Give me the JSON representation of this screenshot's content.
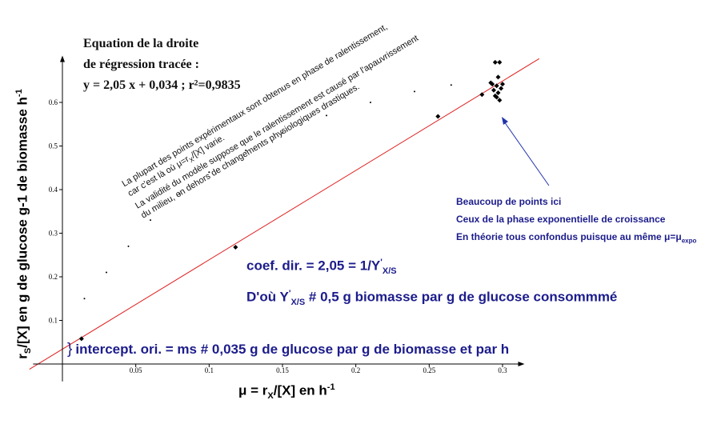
{
  "chart_data": {
    "type": "scatter",
    "xlim": [
      -0.02,
      0.315
    ],
    "ylim": [
      -0.2,
      0.7
    ],
    "x_ticks": [
      0.05,
      0.1,
      0.15,
      0.2,
      0.25,
      0.3
    ],
    "x_tick_labels": [
      "0.05",
      "0.1",
      "0.15",
      "0.2",
      "0.25",
      "0.3"
    ],
    "y_ticks": [
      0.1,
      0.2,
      0.3,
      0.4,
      0.5,
      0.6
    ],
    "y_tick_labels": [
      "0.1",
      "0.2",
      "0.3",
      "0.4",
      "0.5",
      "0.6"
    ],
    "grid": false,
    "regression": {
      "slope": 2.05,
      "intercept": 0.034
    },
    "points": [
      {
        "x": 0.013,
        "y": 0.058
      },
      {
        "x": 0.118,
        "y": 0.268
      },
      {
        "x": 0.256,
        "y": 0.568
      },
      {
        "x": 0.286,
        "y": 0.618
      },
      {
        "x": 0.295,
        "y": 0.692
      },
      {
        "x": 0.298,
        "y": 0.692
      },
      {
        "x": 0.297,
        "y": 0.658
      },
      {
        "x": 0.293,
        "y": 0.642
      },
      {
        "x": 0.296,
        "y": 0.638
      },
      {
        "x": 0.299,
        "y": 0.632
      },
      {
        "x": 0.294,
        "y": 0.628
      },
      {
        "x": 0.297,
        "y": 0.622
      },
      {
        "x": 0.296,
        "y": 0.612
      },
      {
        "x": 0.298,
        "y": 0.605
      },
      {
        "x": 0.292,
        "y": 0.645
      },
      {
        "x": 0.3,
        "y": 0.642
      },
      {
        "x": 0.295,
        "y": 0.615
      }
    ],
    "curve": [
      {
        "x": 0.015,
        "y": 0.15
      },
      {
        "x": 0.03,
        "y": 0.21
      },
      {
        "x": 0.045,
        "y": 0.27
      },
      {
        "x": 0.06,
        "y": 0.33
      },
      {
        "x": 0.08,
        "y": 0.39
      },
      {
        "x": 0.1,
        "y": 0.44
      },
      {
        "x": 0.125,
        "y": 0.49
      },
      {
        "x": 0.15,
        "y": 0.53
      },
      {
        "x": 0.18,
        "y": 0.57
      },
      {
        "x": 0.21,
        "y": 0.6
      },
      {
        "x": 0.24,
        "y": 0.625
      },
      {
        "x": 0.265,
        "y": 0.64
      }
    ],
    "ylabel": {
      "a": "r",
      "a_sub": "S",
      "b": "/[X]   en g de glucose g-1 de biomasse h",
      "sup": "-1"
    },
    "xlabel": {
      "a": "μ = r",
      "a_sub": "X",
      "b": "/[X]  en h",
      "sup": "-1"
    },
    "colors": {
      "line": "#e02020",
      "points": "#000000",
      "axis": "#000000",
      "annotation": "#1c1c8c",
      "arrow": "#2233aa"
    }
  },
  "equation": {
    "line1": "Equation de la droite",
    "line2": "de régression tracée :",
    "line3": "y = 2,05 x + 0,034 ; r²=0,9835"
  },
  "note": {
    "line1": "La plupart des points expérimentaux sont obtenus en phase de ralentissement,",
    "line2a": "car c'est là où μ=r",
    "line2_sub": "X",
    "line2b": "/[X] varie.",
    "line3": "La validité du modèle suppose que le ralentissement est causé par l'apauvrissement",
    "line4": "du milieu, en dehors de changements physiologiques drastiques."
  },
  "cluster_note": {
    "line1": "Beaucoup de points ici",
    "line2": "Ceux de la phase exponentielle de croissance",
    "line3a": "En théorie tous confondus puisque au même μ=μ",
    "line3_sub": "expo"
  },
  "slope_note": {
    "line1a": "coef. dir. = 2,05 = 1/Y",
    "line1_sup": "'",
    "line1_sub": "X/S",
    "line2a": "D'où Y",
    "line2_sup": "'",
    "line2_sub": "X/S",
    "line2b": " # 0,5 g biomasse par g de glucose consommmé"
  },
  "intercept_note": {
    "brace": "}",
    "text": "intercept. ori. = ms # 0,035 g de glucose par g de biomasse et par h"
  }
}
